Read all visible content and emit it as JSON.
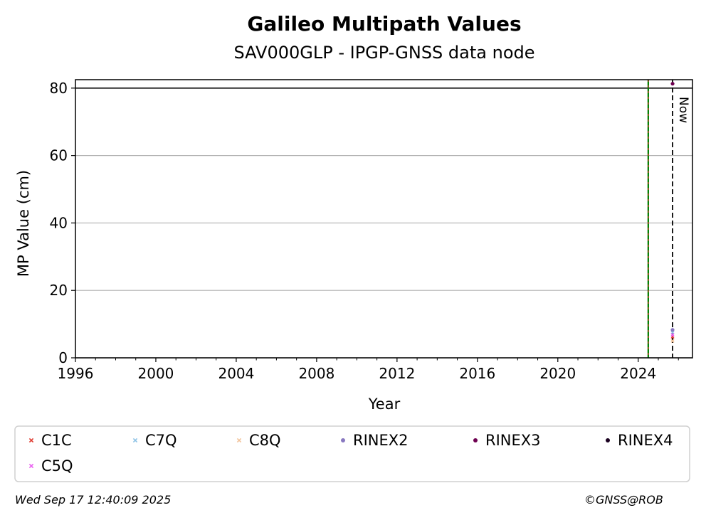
{
  "chart_data": {
    "type": "scatter",
    "title": "Galileo Multipath Values",
    "subtitle": "SAV000GLP - IPGP-GNSS data node",
    "xlabel": "Year",
    "ylabel": "MP Value (cm)",
    "xlim": [
      1996,
      2026.7
    ],
    "ylim": [
      0,
      82.5
    ],
    "x_ticks": [
      "1996",
      "2000",
      "2004",
      "2008",
      "2012",
      "2016",
      "2020",
      "2024"
    ],
    "y_ticks": [
      "0",
      "20",
      "40",
      "60",
      "80"
    ],
    "grid": "horizontal",
    "threshold_line": 80,
    "event_line": {
      "x": 2024.5,
      "colors": [
        "#008000",
        "#e03c31"
      ]
    },
    "now_line": {
      "x": 2025.71,
      "label": "Now"
    },
    "legend": "bottom",
    "series": [
      {
        "name": "C1C",
        "marker": "x",
        "color": "#e03c31",
        "points": [
          [
            2025.71,
            6.2
          ]
        ]
      },
      {
        "name": "C7Q",
        "marker": "x",
        "color": "#8ec3e6",
        "points": [
          [
            2025.71,
            7.5
          ]
        ]
      },
      {
        "name": "C8Q",
        "marker": "x",
        "color": "#f2c49c",
        "points": [
          [
            2025.71,
            5.0
          ]
        ]
      },
      {
        "name": "RINEX2",
        "marker": "dot",
        "color": "#8878c0",
        "points": [
          [
            2025.71,
            8.3
          ]
        ]
      },
      {
        "name": "RINEX3",
        "marker": "dot",
        "color": "#6e0050",
        "points": [
          [
            2025.71,
            81.3
          ]
        ]
      },
      {
        "name": "RINEX4",
        "marker": "dot",
        "color": "#1a0020",
        "points": []
      },
      {
        "name": "C5Q",
        "marker": "x",
        "color": "#e95ff0",
        "points": [
          [
            2025.71,
            6.8
          ]
        ]
      }
    ]
  },
  "footer": {
    "timestamp": "Wed Sep 17 12:40:09 2025",
    "credit": "©GNSS@ROB"
  }
}
